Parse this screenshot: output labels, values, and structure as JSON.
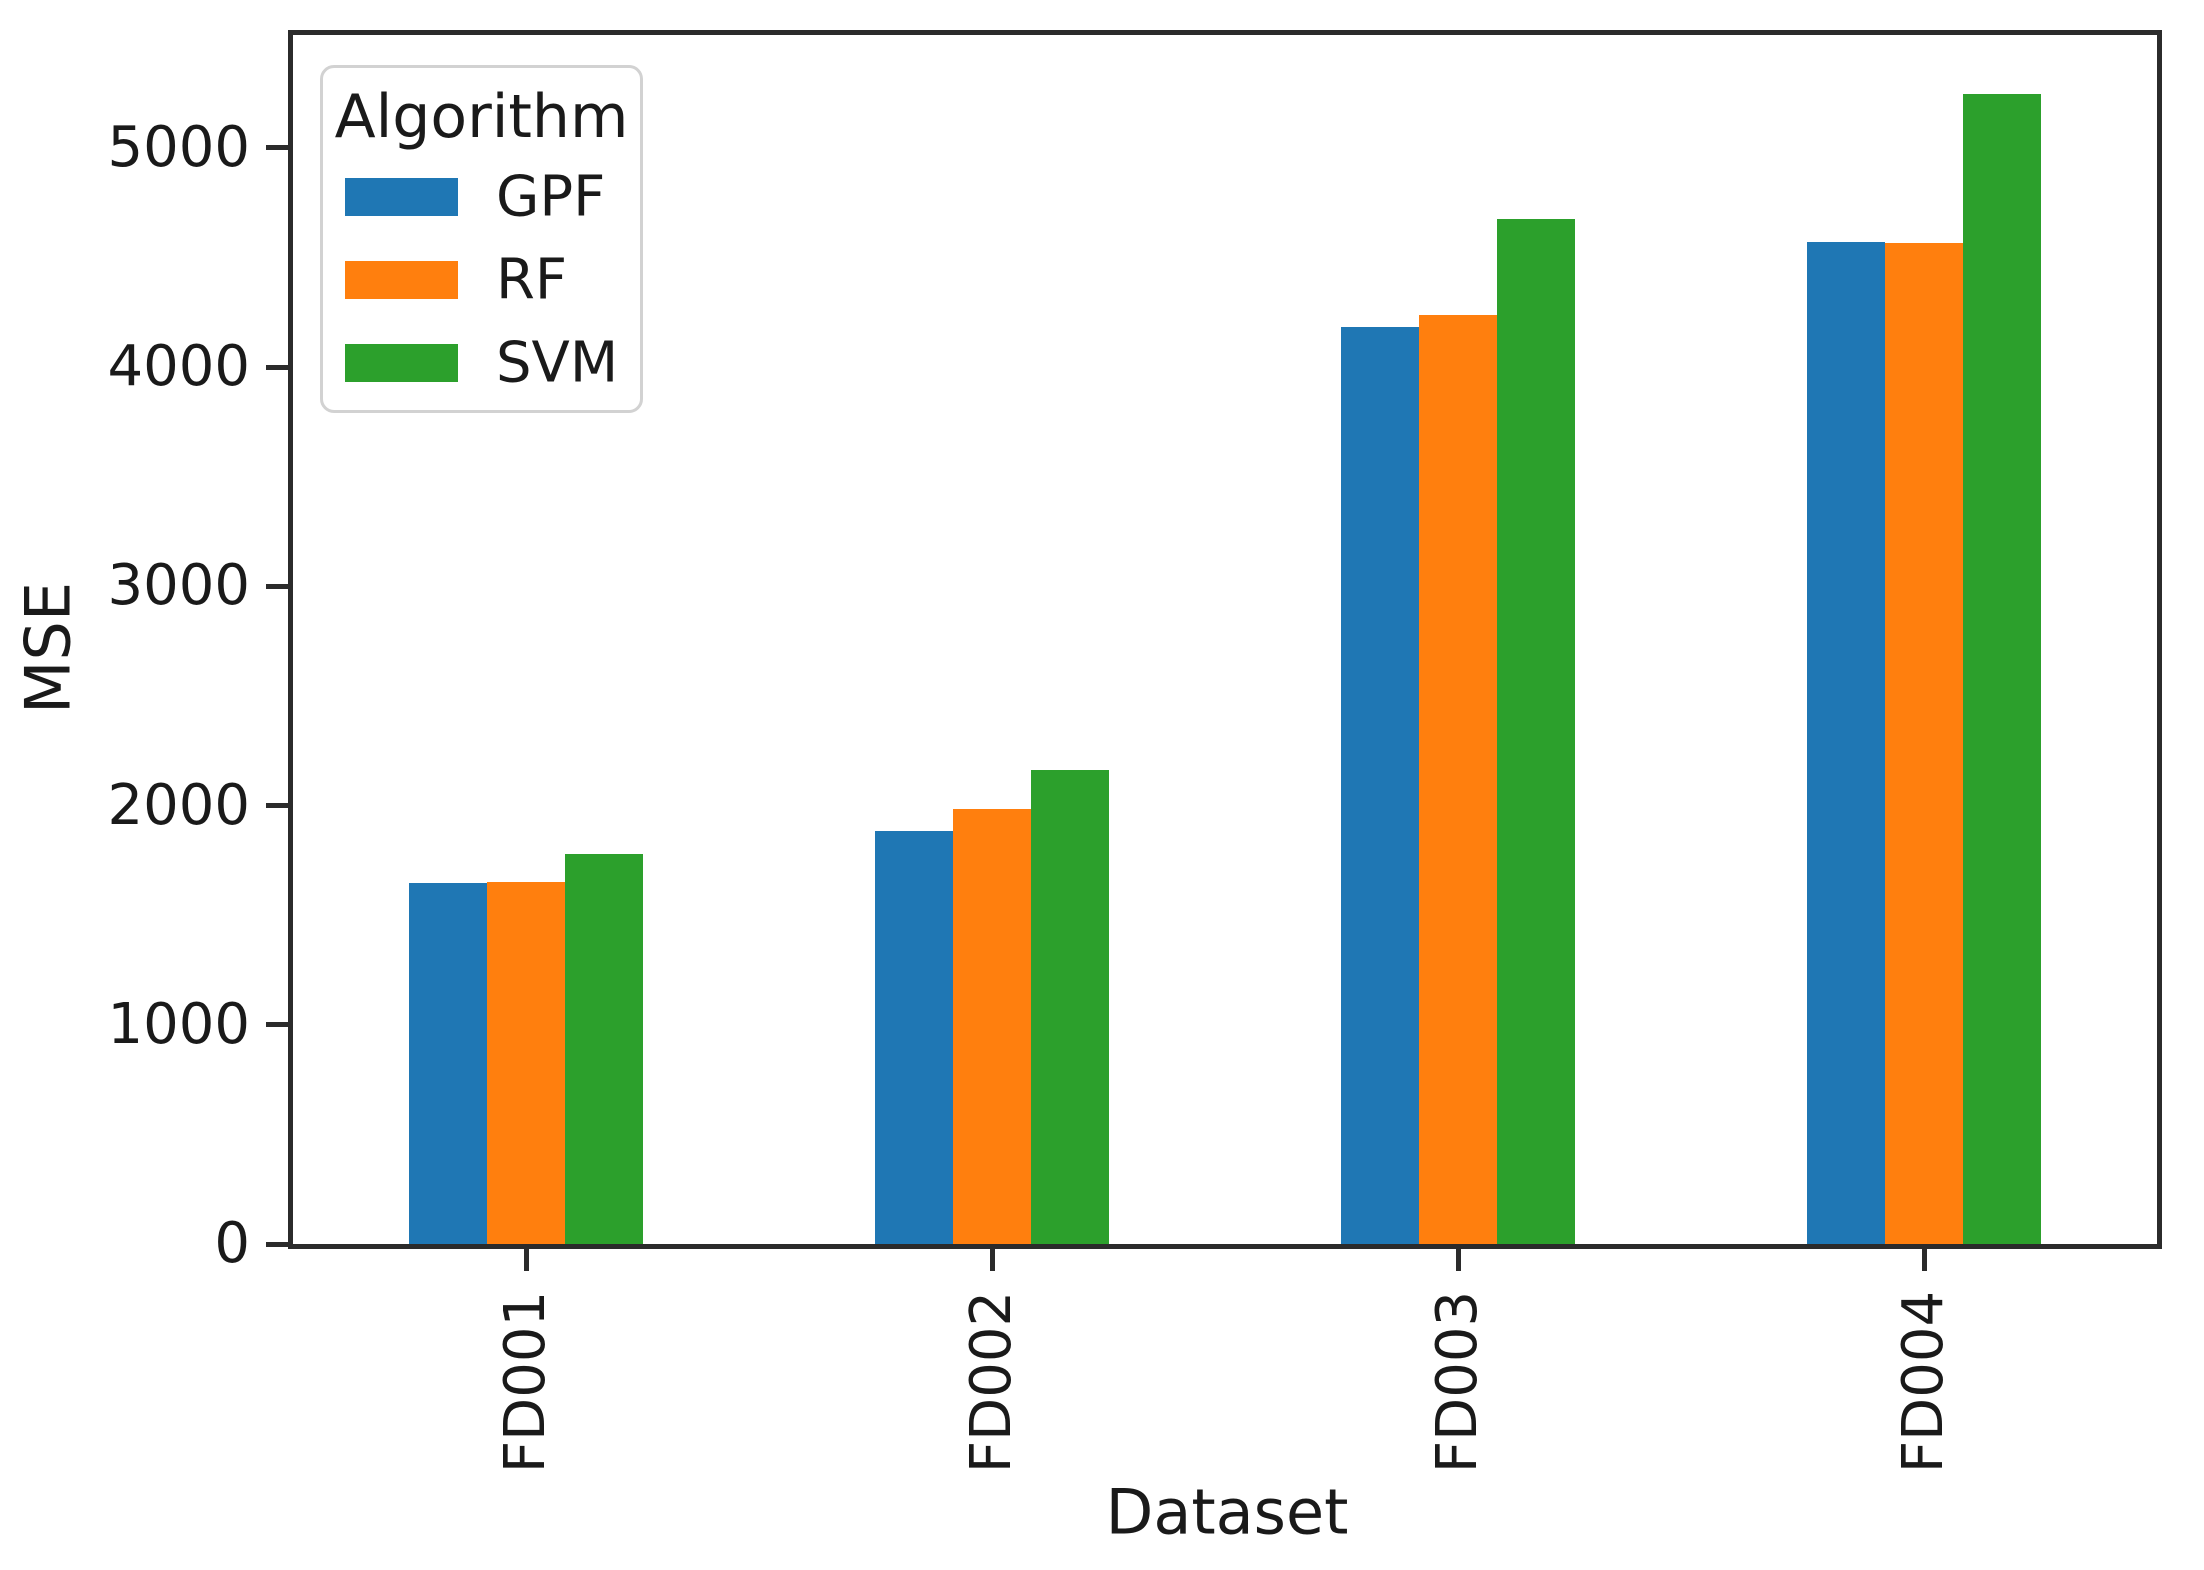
{
  "chart_data": {
    "type": "bar",
    "title": "",
    "xlabel": "Dataset",
    "ylabel": "MSE",
    "categories": [
      "FD001",
      "FD002",
      "FD003",
      "FD004"
    ],
    "series": [
      {
        "name": "GPF",
        "color": "#1f77b4",
        "values": [
          1645,
          1885,
          4185,
          4570
        ]
      },
      {
        "name": "RF",
        "color": "#ff7f0e",
        "values": [
          1650,
          1985,
          4240,
          4565
        ]
      },
      {
        "name": "SVM",
        "color": "#2ca02c",
        "values": [
          1780,
          2160,
          4675,
          5245
        ]
      }
    ],
    "legend": {
      "title": "Algorithm",
      "position": "upper left",
      "entries": [
        "GPF",
        "RF",
        "SVM"
      ]
    },
    "y_ticks": [
      0,
      1000,
      2000,
      3000,
      4000,
      5000
    ],
    "ylim": [
      0,
      5515
    ],
    "grid": false,
    "axis_color": "#2b2b2b",
    "text_color": "#1a1a1a"
  }
}
